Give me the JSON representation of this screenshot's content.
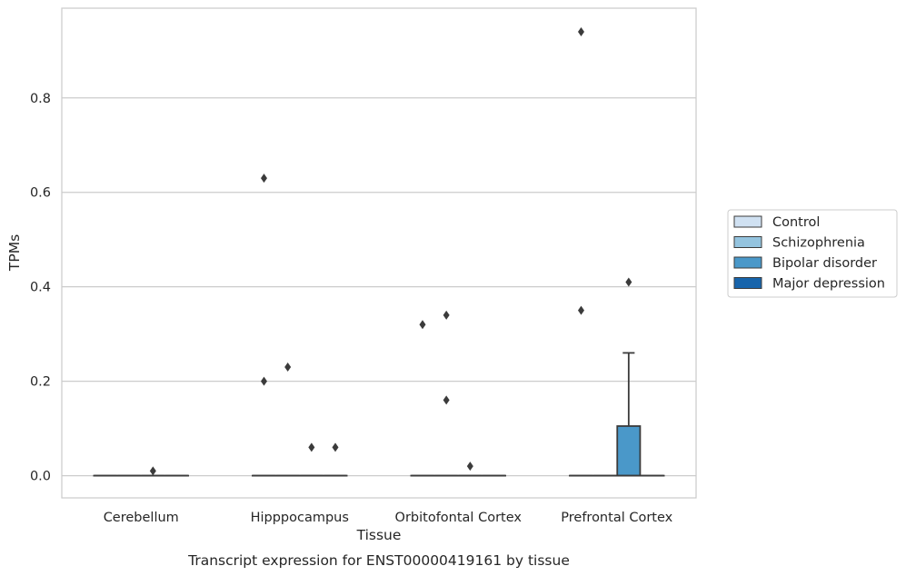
{
  "chart_data": {
    "type": "box",
    "title": "",
    "caption": "Transcript expression for ENST00000419161 by tissue",
    "xlabel": "Tissue",
    "ylabel": "TPMs",
    "ylim": [
      -0.047,
      0.99
    ],
    "yticks": [
      0.0,
      0.2,
      0.4,
      0.6,
      0.8
    ],
    "ytick_labels": [
      "0.0",
      "0.2",
      "0.4",
      "0.6",
      "0.8"
    ],
    "grid": "horizontal",
    "legend_placement": "right, outside",
    "categories": [
      "Cerebellum",
      "Hipppocampus",
      "Orbitofontal Cortex",
      "Prefrontal Cortex"
    ],
    "series": [
      {
        "name": "Control",
        "color": "#d0e1f2",
        "boxes": [
          {
            "q1": 0,
            "median": 0,
            "q3": 0,
            "whisker_low": 0,
            "whisker_high": 0,
            "outliers": []
          },
          {
            "q1": 0,
            "median": 0,
            "q3": 0,
            "whisker_low": 0,
            "whisker_high": 0,
            "outliers": [
              0.63,
              0.2
            ]
          },
          {
            "q1": 0,
            "median": 0,
            "q3": 0,
            "whisker_low": 0,
            "whisker_high": 0,
            "outliers": [
              0.32
            ]
          },
          {
            "q1": 0,
            "median": 0,
            "q3": 0,
            "whisker_low": 0,
            "whisker_high": 0,
            "outliers": [
              0.94,
              0.35
            ]
          }
        ]
      },
      {
        "name": "Schizophrenia",
        "color": "#94c4df",
        "boxes": [
          {
            "q1": 0,
            "median": 0,
            "q3": 0,
            "whisker_low": 0,
            "whisker_high": 0,
            "outliers": []
          },
          {
            "q1": 0,
            "median": 0,
            "q3": 0,
            "whisker_low": 0,
            "whisker_high": 0,
            "outliers": [
              0.23
            ]
          },
          {
            "q1": 0,
            "median": 0,
            "q3": 0,
            "whisker_low": 0,
            "whisker_high": 0,
            "outliers": [
              0.34,
              0.16
            ]
          },
          {
            "q1": 0,
            "median": 0,
            "q3": 0,
            "whisker_low": 0,
            "whisker_high": 0,
            "outliers": []
          }
        ]
      },
      {
        "name": "Bipolar disorder",
        "color": "#4a98c9",
        "boxes": [
          {
            "q1": 0,
            "median": 0,
            "q3": 0,
            "whisker_low": 0,
            "whisker_high": 0,
            "outliers": [
              0.01
            ]
          },
          {
            "q1": 0,
            "median": 0,
            "q3": 0,
            "whisker_low": 0,
            "whisker_high": 0,
            "outliers": [
              0.06
            ]
          },
          {
            "q1": 0,
            "median": 0,
            "q3": 0,
            "whisker_low": 0,
            "whisker_high": 0,
            "outliers": [
              0.02
            ]
          },
          {
            "q1": 0,
            "median": 0,
            "q3": 0.105,
            "whisker_low": 0,
            "whisker_high": 0.26,
            "outliers": [
              0.41
            ]
          }
        ]
      },
      {
        "name": "Major depression",
        "color": "#1764ab",
        "boxes": [
          {
            "q1": 0,
            "median": 0,
            "q3": 0,
            "whisker_low": 0,
            "whisker_high": 0,
            "outliers": []
          },
          {
            "q1": 0,
            "median": 0,
            "q3": 0,
            "whisker_low": 0,
            "whisker_high": 0,
            "outliers": [
              0.06
            ]
          },
          {
            "q1": 0,
            "median": 0,
            "q3": 0,
            "whisker_low": 0,
            "whisker_high": 0,
            "outliers": []
          },
          {
            "q1": 0,
            "median": 0,
            "q3": 0,
            "whisker_low": 0,
            "whisker_high": 0,
            "outliers": []
          }
        ]
      }
    ],
    "colors": {
      "grid": "#cccccc",
      "frame": "#cccccc",
      "line": "#3b3b3b",
      "text": "#262626"
    }
  }
}
